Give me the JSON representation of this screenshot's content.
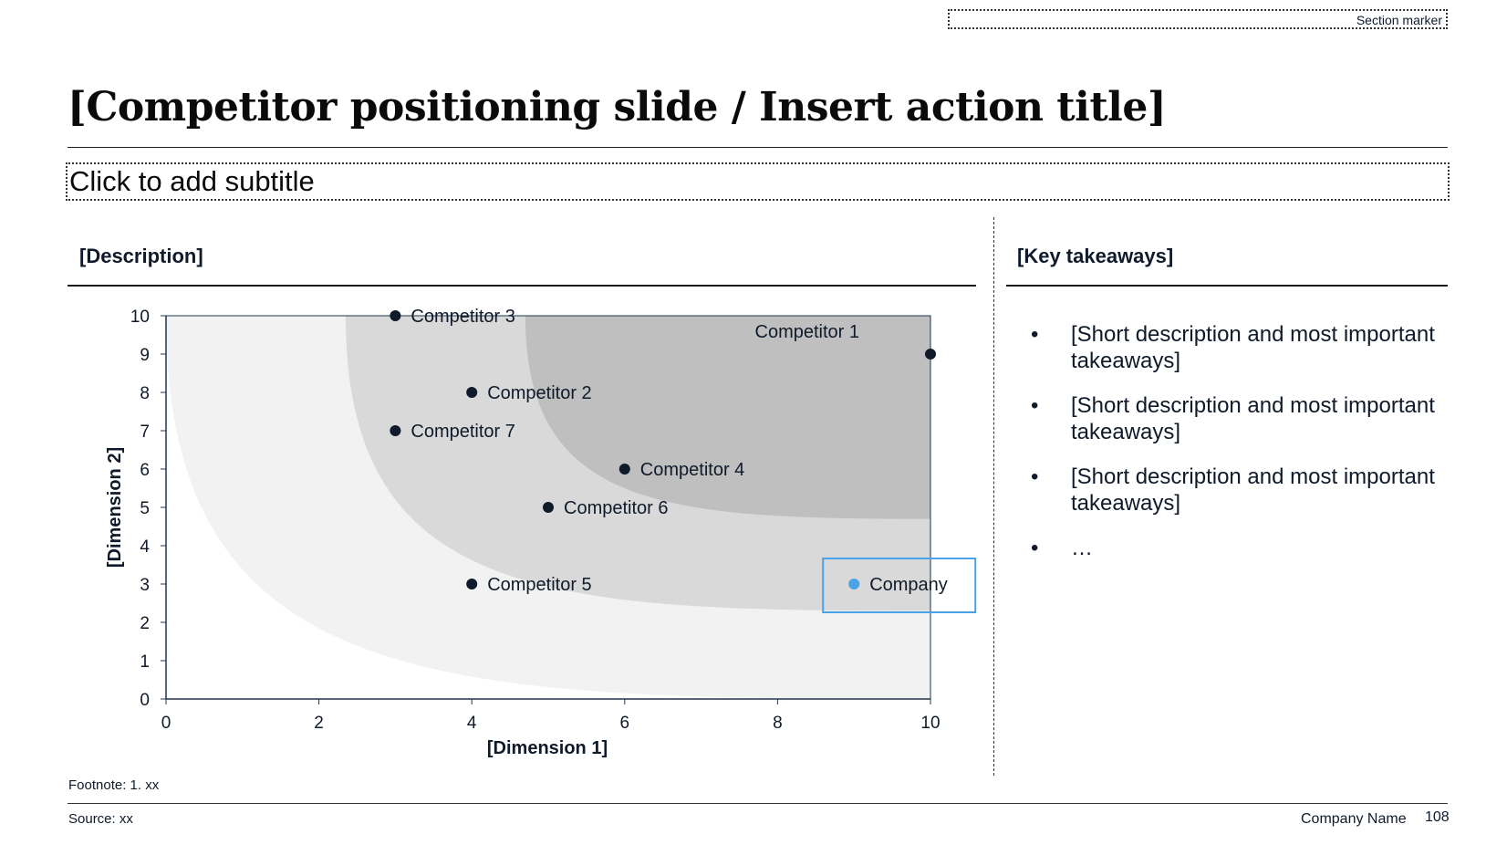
{
  "section_marker": "Section marker",
  "title": "[Competitor positioning slide / Insert action title]",
  "subtitle": "Click to add subtitle",
  "left_header": "[Description]",
  "right_header": "[Key takeaways]",
  "takeaways": [
    "[Short description and most important takeaways]",
    "[Short description and most important takeaways]",
    "[Short description and most important takeaways]",
    "…"
  ],
  "bullet_glyph": "•",
  "footnote": "Footnote: 1. xx",
  "source": "Source: xx",
  "company_name": "Company Name",
  "page_number": "108",
  "chart_data": {
    "type": "scatter",
    "xlabel": "[Dimension 1]",
    "ylabel": "[Dimension 2]",
    "xlim": [
      0,
      10
    ],
    "ylim": [
      0,
      10
    ],
    "x_ticks": [
      0,
      2,
      4,
      6,
      8,
      10
    ],
    "y_ticks": [
      0,
      1,
      2,
      3,
      4,
      5,
      6,
      7,
      8,
      9,
      10
    ],
    "grid": false,
    "points": [
      {
        "label": "Competitor 1",
        "x": 10,
        "y": 9,
        "highlight": false
      },
      {
        "label": "Competitor 2",
        "x": 4,
        "y": 8,
        "highlight": false
      },
      {
        "label": "Competitor 3",
        "x": 3,
        "y": 10,
        "highlight": false
      },
      {
        "label": "Competitor 4",
        "x": 6,
        "y": 6,
        "highlight": false
      },
      {
        "label": "Competitor 5",
        "x": 4,
        "y": 3,
        "highlight": false
      },
      {
        "label": "Competitor 6",
        "x": 5,
        "y": 5,
        "highlight": false
      },
      {
        "label": "Competitor 7",
        "x": 3,
        "y": 7,
        "highlight": false
      },
      {
        "label": "Company",
        "x": 9,
        "y": 3,
        "highlight": true
      }
    ],
    "zones": [
      {
        "name": "outer",
        "color": "#f2f2f2",
        "start_x": 0,
        "end_y": 0
      },
      {
        "name": "middle",
        "color": "#d9d9d9",
        "start_x": 2.35,
        "end_y": 2.3
      },
      {
        "name": "inner",
        "color": "#bfbfbf",
        "start_x": 4.7,
        "end_y": 4.7
      }
    ],
    "colors": {
      "point": "#0f1a2a",
      "highlight": "#4aa3e6",
      "highlight_box": "#4aa3e6",
      "axis": "#1f3550"
    }
  }
}
